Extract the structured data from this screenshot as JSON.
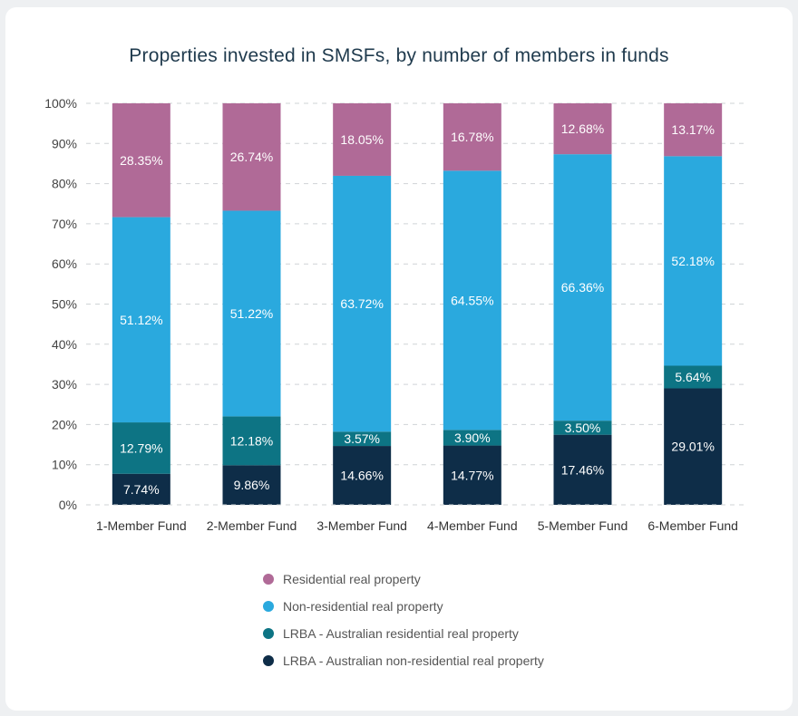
{
  "chart_data": {
    "type": "bar",
    "stacked": true,
    "title": "Properties invested in SMSFs, by number of members in funds",
    "xlabel": "",
    "ylabel": "",
    "ylim": [
      0,
      100
    ],
    "yticks": [
      "0%",
      "10%",
      "20%",
      "30%",
      "40%",
      "50%",
      "60%",
      "70%",
      "80%",
      "90%",
      "100%"
    ],
    "grid": "horizontal-dashed",
    "legend_position": "bottom",
    "categories": [
      "1-Member Fund",
      "2-Member Fund",
      "3-Member Fund",
      "4-Member Fund",
      "5-Member Fund",
      "6-Member Fund"
    ],
    "series": [
      {
        "name": "LRBA - Australian non-residential real property",
        "color": "#0e2d48",
        "values": [
          7.74,
          9.86,
          14.66,
          14.77,
          17.46,
          29.01
        ],
        "labels": [
          "7.74%",
          "9.86%",
          "14.66%",
          "14.77%",
          "17.46%",
          "29.01%"
        ]
      },
      {
        "name": "LRBA - Australian residential real property",
        "color": "#0d7484",
        "values": [
          12.79,
          12.18,
          3.57,
          3.9,
          3.5,
          5.64
        ],
        "labels": [
          "12.79%",
          "12.18%",
          "3.57%",
          "3.90%",
          "3.50%",
          "5.64%"
        ]
      },
      {
        "name": "Non-residential real property",
        "color": "#2aa9de",
        "values": [
          51.12,
          51.22,
          63.72,
          64.55,
          66.36,
          52.18
        ],
        "labels": [
          "51.12%",
          "51.22%",
          "63.72%",
          "64.55%",
          "66.36%",
          "52.18%"
        ]
      },
      {
        "name": "Residential real property",
        "color": "#b06a97",
        "values": [
          28.35,
          26.74,
          18.05,
          16.78,
          12.68,
          13.17
        ],
        "labels": [
          "28.35%",
          "26.74%",
          "18.05%",
          "16.78%",
          "12.68%",
          "13.17%"
        ]
      }
    ],
    "legend_order": [
      3,
      2,
      1,
      0
    ]
  }
}
